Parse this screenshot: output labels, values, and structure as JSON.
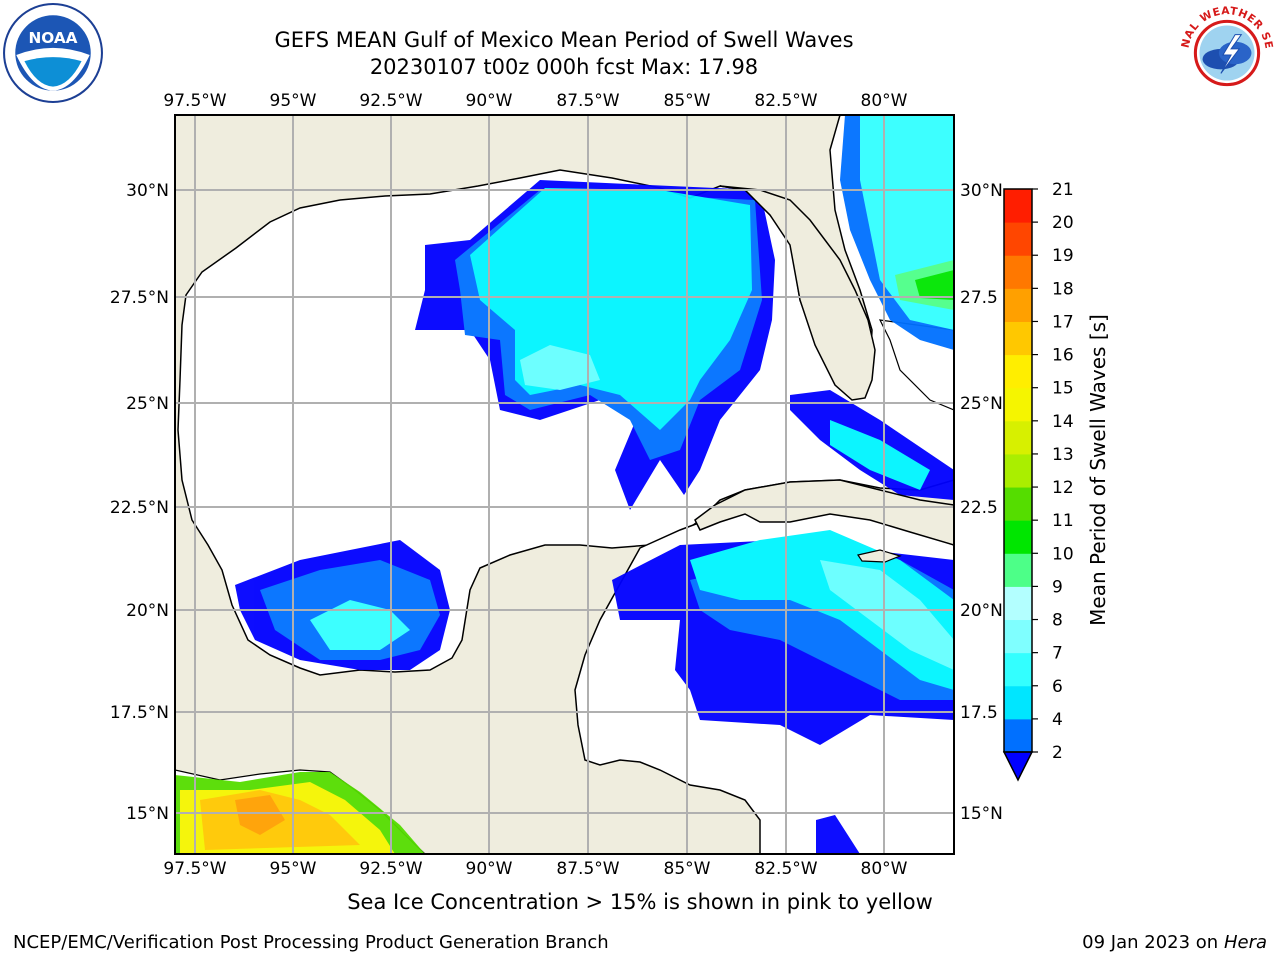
{
  "header": {
    "title_line1": "GEFS MEAN Gulf of Mexico Mean Period of Swell Waves",
    "title_line2": "20230107 t00z 000h fcst   Max: 17.98"
  },
  "logos": {
    "left": "NOAA",
    "right": "NATIONAL WEATHER SERVICE"
  },
  "map": {
    "longitude_labels": [
      "97.5°W",
      "95°W",
      "92.5°W",
      "90°W",
      "87.5°W",
      "85°W",
      "82.5°W",
      "80°W"
    ],
    "latitude_labels": [
      "30°N",
      "27.5°N",
      "25°N",
      "22.5°N",
      "20°N",
      "17.5°N",
      "15°N"
    ],
    "latitude_labels_right": [
      "30°N",
      "27.5",
      "25°N",
      "22.5",
      "20°N",
      "17.5",
      "15°N"
    ],
    "colors": {
      "land": "#efedde",
      "ocean": "#ffffff",
      "grid": "#b0b0b0"
    }
  },
  "colorbar": {
    "label": "Mean Period of Swell Waves [s]",
    "ticks": [
      "2",
      "4",
      "6",
      "7",
      "8",
      "9",
      "10",
      "11",
      "12",
      "13",
      "14",
      "15",
      "16",
      "17",
      "18",
      "19",
      "20",
      "21"
    ],
    "colors": [
      "#0000ff",
      "#0070ff",
      "#00e6ff",
      "#33ffff",
      "#7fffff",
      "#b3ffff",
      "#4dff88",
      "#00e600",
      "#55dd00",
      "#aaee00",
      "#d7f000",
      "#f5f500",
      "#ffee00",
      "#ffc800",
      "#ffa000",
      "#ff7800",
      "#ff4600",
      "#ff1e00",
      "#ff0000"
    ]
  },
  "notes": {
    "ice": "Sea Ice Concentration > 15% is shown in pink to yellow"
  },
  "footer": {
    "left": "NCEP/EMC/Verification Post Processing Product Generation Branch",
    "right_date": "09 Jan 2023 on ",
    "right_host": "Hera"
  }
}
